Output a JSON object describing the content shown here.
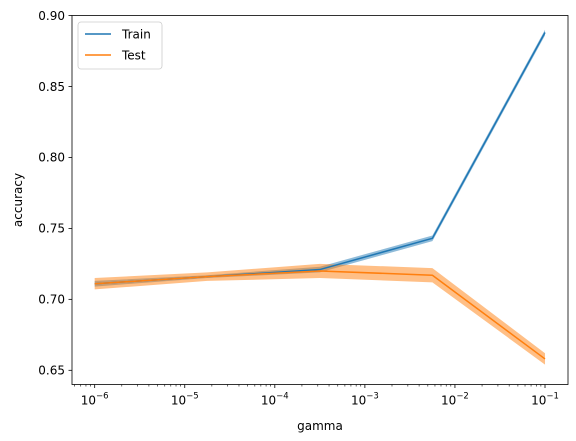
{
  "chart_data": {
    "type": "line",
    "title": "",
    "xlabel": "gamma",
    "ylabel": "accuracy",
    "xscale": "log",
    "xlim": [
      5.6e-07,
      0.18
    ],
    "ylim": [
      0.64,
      0.9
    ],
    "xticks": [
      {
        "value": 1e-06,
        "base": "10",
        "exp": "−6"
      },
      {
        "value": 1e-05,
        "base": "10",
        "exp": "−5"
      },
      {
        "value": 0.0001,
        "base": "10",
        "exp": "−4"
      },
      {
        "value": 0.001,
        "base": "10",
        "exp": "−3"
      },
      {
        "value": 0.01,
        "base": "10",
        "exp": "−2"
      },
      {
        "value": 0.1,
        "base": "10",
        "exp": "−1"
      }
    ],
    "yticks": [
      "0.65",
      "0.70",
      "0.75",
      "0.80",
      "0.85",
      "0.90"
    ],
    "grid": false,
    "legend_position": "top-left",
    "x": [
      1e-06,
      1.78e-05,
      0.000316,
      0.00562,
      0.1
    ],
    "series": [
      {
        "name": "Train",
        "color": "#1f77b4",
        "values": [
          0.711,
          0.716,
          0.721,
          0.743,
          0.888
        ],
        "lower": [
          0.709,
          0.715,
          0.719,
          0.741,
          0.886
        ],
        "upper": [
          0.713,
          0.717,
          0.723,
          0.745,
          0.89
        ]
      },
      {
        "name": "Test",
        "color": "#ff7f0e",
        "values": [
          0.711,
          0.716,
          0.72,
          0.717,
          0.658
        ],
        "lower": [
          0.707,
          0.713,
          0.715,
          0.712,
          0.654
        ],
        "upper": [
          0.715,
          0.719,
          0.725,
          0.722,
          0.662
        ]
      }
    ]
  }
}
